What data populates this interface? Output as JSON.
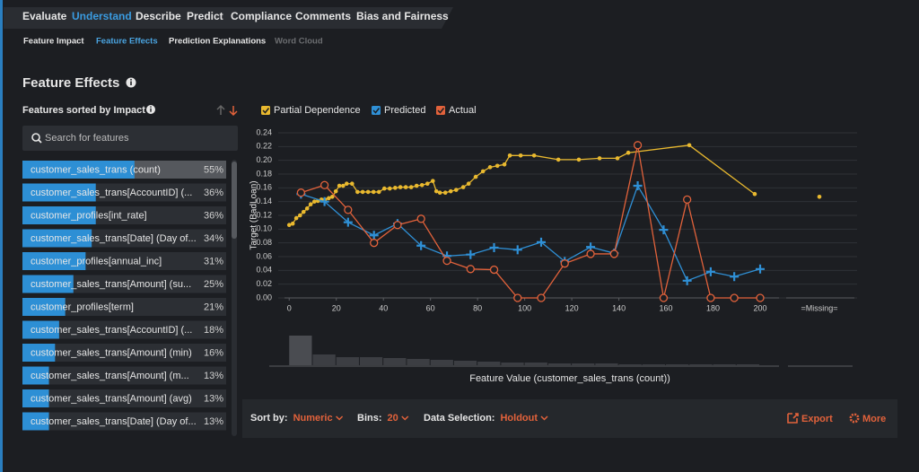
{
  "nav": {
    "tabs": [
      "Evaluate",
      "Understand",
      "Describe",
      "Predict",
      "Compliance",
      "Comments",
      "Bias and Fairness"
    ],
    "active": 1
  },
  "subnav": {
    "tabs": [
      "Feature Impact",
      "Feature Effects",
      "Prediction Explanations",
      "Word Cloud"
    ],
    "active": 1,
    "disabled": 3
  },
  "header": {
    "title": "Feature Effects"
  },
  "sidebar": {
    "title": "Features sorted by Impact",
    "search_placeholder": "Search for features",
    "features": [
      {
        "name": "customer_sales_trans (count)",
        "impact": 55,
        "impact_label": "55%"
      },
      {
        "name": "customer_sales_trans[AccountID] (...",
        "impact": 36,
        "impact_label": "36%"
      },
      {
        "name": "customer_profiles[int_rate]",
        "impact": 36,
        "impact_label": "36%"
      },
      {
        "name": "customer_sales_trans[Date] (Day of...",
        "impact": 34,
        "impact_label": "34%"
      },
      {
        "name": "customer_profiles[annual_inc]",
        "impact": 31,
        "impact_label": "31%"
      },
      {
        "name": "customer_sales_trans[Amount] (su...",
        "impact": 25,
        "impact_label": "25%"
      },
      {
        "name": "customer_profiles[term]",
        "impact": 21,
        "impact_label": "21%"
      },
      {
        "name": "customer_sales_trans[AccountID] (...",
        "impact": 18,
        "impact_label": "18%"
      },
      {
        "name": "customer_sales_trans[Amount] (min)",
        "impact": 16,
        "impact_label": "16%"
      },
      {
        "name": "customer_sales_trans[Amount] (m...",
        "impact": 13,
        "impact_label": "13%"
      },
      {
        "name": "customer_sales_trans[Amount] (avg)",
        "impact": 13,
        "impact_label": "13%"
      },
      {
        "name": "customer_sales_trans[Date] (Day of...",
        "impact": 13,
        "impact_label": "13%"
      }
    ]
  },
  "chart_data": {
    "type": "line",
    "y_label": "Target (BadLoan)",
    "x_label": "Feature Value (customer_sales_trans (count))",
    "xlim": [
      -2,
      208
    ],
    "ylim": [
      0,
      0.24
    ],
    "xticks": [
      0,
      20,
      40,
      60,
      80,
      100,
      120,
      140,
      160,
      180,
      200
    ],
    "yticks": [
      {
        "value": 0,
        "label": "0.00"
      },
      {
        "value": 0.02,
        "label": "0.02"
      },
      {
        "value": 0.04,
        "label": "0.04"
      },
      {
        "value": 0.06,
        "label": "0.06"
      },
      {
        "value": 0.08,
        "label": "0.08"
      },
      {
        "value": 0.1,
        "label": "0.10"
      },
      {
        "value": 0.12,
        "label": "0.12"
      },
      {
        "value": 0.14,
        "label": "0.14"
      },
      {
        "value": 0.16,
        "label": "0.16"
      },
      {
        "value": 0.18,
        "label": "0.18"
      },
      {
        "value": 0.2,
        "label": "0.20"
      },
      {
        "value": 0.22,
        "label": "0.22"
      },
      {
        "value": 0.24,
        "label": "0.24"
      }
    ],
    "grid": true,
    "missing_label": "=Missing=",
    "series": [
      {
        "name": "Partial Dependence",
        "color": "#e9b92f",
        "marker": "dot",
        "x": [
          0,
          1.5,
          3,
          4.6,
          6.1,
          7.6,
          9.1,
          10.7,
          12.2,
          13.7,
          15.2,
          16.8,
          18.3,
          19.8,
          21.3,
          22.9,
          24.4,
          26.7,
          29,
          31.2,
          33.5,
          35.8,
          38.1,
          40.4,
          42.7,
          45,
          47.2,
          49.5,
          51.8,
          54.1,
          56.4,
          58.7,
          61,
          62.5,
          64,
          66.3,
          68.6,
          70.9,
          73.9,
          76.2,
          79.2,
          82.3,
          85.3,
          88.4,
          91.4,
          93.7,
          98.3,
          104,
          114.3,
          123,
          131.8,
          139.4,
          144,
          169.9,
          197.7
        ],
        "values": [
          0.106,
          0.108,
          0.116,
          0.12,
          0.125,
          0.13,
          0.136,
          0.14,
          0.141,
          0.143,
          0.143,
          0.145,
          0.147,
          0.155,
          0.163,
          0.163,
          0.166,
          0.166,
          0.154,
          0.154,
          0.154,
          0.154,
          0.154,
          0.159,
          0.159,
          0.16,
          0.161,
          0.161,
          0.161,
          0.163,
          0.164,
          0.166,
          0.17,
          0.155,
          0.153,
          0.153,
          0.155,
          0.157,
          0.161,
          0.166,
          0.176,
          0.184,
          0.19,
          0.192,
          0.194,
          0.207,
          0.207,
          0.207,
          0.201,
          0.201,
          0.203,
          0.203,
          0.211,
          0.222,
          0.151
        ],
        "missing_value": 0.147
      },
      {
        "name": "Predicted",
        "color": "#2f90d6",
        "marker": "plus",
        "x": [
          5,
          15,
          25,
          36,
          46,
          56,
          67,
          77,
          87,
          97,
          107,
          117,
          128,
          138,
          148,
          159,
          169,
          179,
          189,
          200
        ],
        "values": [
          0.151,
          0.14,
          0.11,
          0.091,
          0.108,
          0.076,
          0.061,
          0.063,
          0.073,
          0.07,
          0.081,
          0.053,
          0.074,
          0.065,
          0.163,
          0.099,
          0.025,
          0.038,
          0.031,
          0.042
        ]
      },
      {
        "name": "Actual",
        "color": "#e2623b",
        "marker": "circle",
        "x": [
          5,
          15,
          25,
          36,
          46,
          56,
          67,
          77,
          87,
          97,
          107,
          117,
          128,
          138,
          148,
          159,
          169,
          179,
          189,
          200
        ],
        "values": [
          0.153,
          0.164,
          0.128,
          0.08,
          0.106,
          0.115,
          0.054,
          0.042,
          0.041,
          0,
          0,
          0.05,
          0.064,
          0.064,
          0.222,
          0,
          0.143,
          0,
          0,
          0
        ]
      }
    ],
    "histogram": {
      "color": "#3c3e43",
      "bins": [
        0,
        10,
        20,
        30,
        40,
        50,
        60,
        70,
        80,
        90,
        100,
        110,
        120,
        130,
        140,
        150,
        160,
        170,
        180,
        190,
        200
      ],
      "counts": [
        33,
        12,
        9,
        9,
        8,
        7,
        6,
        5,
        4,
        3,
        3,
        2,
        2,
        2,
        1,
        1,
        1,
        1,
        1,
        1
      ]
    }
  },
  "controls": {
    "sort_by": {
      "label": "Sort by:",
      "value": "Numeric"
    },
    "bins": {
      "label": "Bins:",
      "value": "20"
    },
    "data_selection": {
      "label": "Data Selection:",
      "value": "Holdout"
    },
    "export": "Export",
    "more": "More"
  }
}
